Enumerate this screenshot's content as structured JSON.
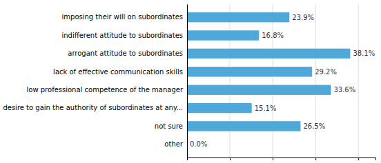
{
  "chart_data": {
    "type": "bar",
    "orientation": "horizontal",
    "categories": [
      "other",
      "not sure",
      "desire to gain the authority of subordinates at any...",
      "low professional competence of the manager",
      "lack of effective communication skills",
      "arrogant attitude to subordinates",
      "indifferent attitude to subordinates",
      "imposing their will on subordinates"
    ],
    "values": [
      0.0,
      26.5,
      15.1,
      33.6,
      29.2,
      38.1,
      16.8,
      23.9
    ],
    "value_labels": [
      "0.0%",
      "26.5%",
      "15.1%",
      "33.6%",
      "29.2%",
      "38.1%",
      "16.8%",
      "23.9%"
    ],
    "data_labels": true,
    "color": "#4FA8D8",
    "xlim": [
      0,
      44
    ],
    "xticks": [
      0,
      10,
      20,
      30,
      40
    ],
    "grid": true,
    "tick_labels": "y"
  }
}
